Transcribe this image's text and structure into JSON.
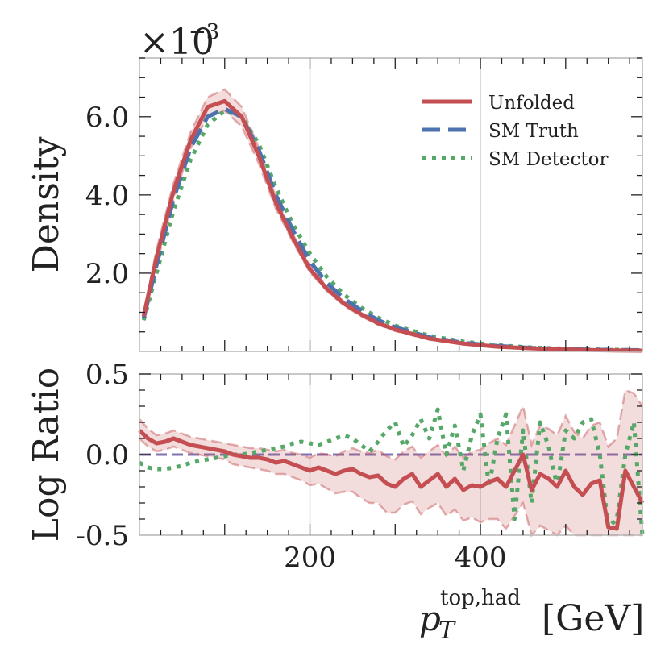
{
  "chart_data": [
    {
      "type": "line",
      "panel": "main",
      "ylabel": "Density",
      "y_scale_label": "×10⁻³",
      "y_scale_base": "×10",
      "y_scale_exp": "−3",
      "ylim": [
        0,
        7.5
      ],
      "xlim": [
        0,
        590
      ],
      "yticks": [
        2.0,
        4.0,
        6.0
      ],
      "ytick_labels": [
        "2.0",
        "4.0",
        "6.0"
      ],
      "grid": "vertical at 200 and 400",
      "legend_position": "top-right",
      "series": [
        {
          "name": "Unfolded",
          "color": "#c44e52",
          "style": "solid",
          "x": [
            5,
            20,
            40,
            60,
            80,
            100,
            120,
            140,
            160,
            180,
            200,
            220,
            240,
            260,
            280,
            300,
            340,
            380,
            420,
            460,
            500,
            540,
            590
          ],
          "y": [
            0.9,
            2.4,
            4.1,
            5.4,
            6.25,
            6.4,
            6.0,
            5.0,
            3.8,
            2.9,
            2.1,
            1.6,
            1.22,
            0.95,
            0.72,
            0.56,
            0.33,
            0.2,
            0.12,
            0.08,
            0.05,
            0.03,
            0.02
          ],
          "band_lower": [
            0.8,
            2.2,
            3.9,
            5.2,
            6.0,
            6.15,
            5.75,
            4.8,
            3.65,
            2.8,
            2.02,
            1.54,
            1.17,
            0.9,
            0.68,
            0.52,
            0.3,
            0.18,
            0.1,
            0.06,
            0.04,
            0.02,
            0.01
          ],
          "band_upper": [
            1.0,
            2.6,
            4.3,
            5.6,
            6.5,
            6.7,
            6.25,
            5.2,
            3.95,
            3.0,
            2.18,
            1.66,
            1.27,
            1.0,
            0.76,
            0.6,
            0.36,
            0.22,
            0.14,
            0.1,
            0.07,
            0.04,
            0.03
          ]
        },
        {
          "name": "SM Truth",
          "color": "#4c72b0",
          "style": "dashed",
          "x": [
            5,
            20,
            40,
            60,
            80,
            100,
            120,
            140,
            160,
            180,
            200,
            220,
            240,
            260,
            280,
            300,
            340,
            380,
            420,
            460,
            500,
            540,
            590
          ],
          "y": [
            0.85,
            2.2,
            3.9,
            5.2,
            6.0,
            6.2,
            6.0,
            5.15,
            4.0,
            3.1,
            2.3,
            1.75,
            1.35,
            1.05,
            0.8,
            0.62,
            0.36,
            0.22,
            0.14,
            0.09,
            0.06,
            0.04,
            0.03
          ]
        },
        {
          "name": "SM Detector",
          "color": "#55a868",
          "style": "dotted",
          "x": [
            5,
            20,
            40,
            60,
            80,
            100,
            120,
            140,
            160,
            180,
            200,
            220,
            240,
            260,
            280,
            300,
            340,
            380,
            420,
            460,
            500,
            540,
            590
          ],
          "y": [
            0.8,
            2.0,
            3.6,
            4.9,
            5.8,
            6.15,
            6.0,
            5.3,
            4.2,
            3.25,
            2.5,
            1.9,
            1.45,
            1.12,
            0.86,
            0.66,
            0.4,
            0.25,
            0.16,
            0.1,
            0.07,
            0.05,
            0.03
          ]
        }
      ]
    },
    {
      "type": "line",
      "panel": "ratio",
      "ylabel": "Log Ratio",
      "xlabel_main": "p",
      "xlabel_sub": "T",
      "xlabel_sup": "top,had",
      "xlabel_unit": "[GeV]",
      "ylim": [
        -0.5,
        0.5
      ],
      "xlim": [
        0,
        590
      ],
      "yticks": [
        -0.5,
        0.0,
        0.5
      ],
      "ytick_labels": [
        "-0.5",
        "0.0",
        "0.5"
      ],
      "xticks": [
        200,
        400
      ],
      "xtick_labels": [
        "200",
        "400"
      ],
      "reference_line": {
        "y": 0.0,
        "color": "#8172b2",
        "style": "dashed"
      },
      "series": [
        {
          "name": "Unfolded",
          "color": "#c44e52",
          "style": "solid",
          "x": [
            0,
            10,
            20,
            30,
            40,
            50,
            60,
            70,
            80,
            90,
            100,
            110,
            120,
            130,
            140,
            150,
            160,
            170,
            180,
            190,
            200,
            210,
            220,
            230,
            240,
            250,
            260,
            270,
            280,
            290,
            300,
            310,
            320,
            330,
            340,
            350,
            360,
            370,
            380,
            390,
            400,
            410,
            420,
            430,
            440,
            450,
            460,
            470,
            480,
            490,
            500,
            510,
            520,
            530,
            540,
            550,
            560,
            570,
            580,
            590
          ],
          "y": [
            0.15,
            0.1,
            0.07,
            0.08,
            0.1,
            0.08,
            0.06,
            0.05,
            0.04,
            0.03,
            0.02,
            0.0,
            -0.01,
            -0.02,
            -0.02,
            -0.03,
            -0.05,
            -0.04,
            -0.06,
            -0.08,
            -0.1,
            -0.08,
            -0.1,
            -0.12,
            -0.1,
            -0.09,
            -0.12,
            -0.14,
            -0.13,
            -0.18,
            -0.2,
            -0.15,
            -0.12,
            -0.2,
            -0.16,
            -0.12,
            -0.2,
            -0.15,
            -0.22,
            -0.19,
            -0.2,
            -0.17,
            -0.15,
            -0.2,
            -0.1,
            0.0,
            -0.22,
            -0.12,
            -0.15,
            -0.2,
            -0.1,
            -0.2,
            -0.25,
            -0.18,
            -0.16,
            -0.45,
            -0.46,
            -0.1,
            -0.2,
            -0.3
          ],
          "band_lower": [
            0.1,
            0.05,
            0.02,
            0.03,
            0.05,
            0.03,
            0.01,
            0.0,
            -0.01,
            -0.02,
            -0.03,
            -0.06,
            -0.07,
            -0.08,
            -0.09,
            -0.1,
            -0.12,
            -0.12,
            -0.14,
            -0.16,
            -0.19,
            -0.18,
            -0.21,
            -0.24,
            -0.23,
            -0.23,
            -0.27,
            -0.3,
            -0.3,
            -0.36,
            -0.36,
            -0.31,
            -0.29,
            -0.37,
            -0.33,
            -0.3,
            -0.38,
            -0.34,
            -0.41,
            -0.39,
            -0.42,
            -0.4,
            -0.4,
            -0.46,
            -0.38,
            -0.3,
            -0.5,
            -0.44,
            -0.47,
            -0.5,
            -0.44,
            -0.5,
            -0.5,
            -0.5,
            -0.5,
            -0.5,
            -0.5,
            -0.5,
            -0.5,
            -0.5
          ],
          "band_upper": [
            0.22,
            0.16,
            0.12,
            0.13,
            0.15,
            0.13,
            0.11,
            0.1,
            0.09,
            0.08,
            0.07,
            0.06,
            0.05,
            0.04,
            0.04,
            0.03,
            0.02,
            0.03,
            0.01,
            0.0,
            -0.02,
            0.01,
            -0.0,
            -0.01,
            0.02,
            0.04,
            0.02,
            0.01,
            0.03,
            -0.01,
            -0.03,
            0.02,
            0.05,
            -0.02,
            0.02,
            0.06,
            -0.01,
            0.05,
            -0.02,
            0.02,
            0.03,
            0.07,
            0.1,
            0.06,
            0.18,
            0.3,
            0.06,
            0.18,
            0.16,
            0.12,
            0.24,
            0.14,
            0.1,
            0.18,
            0.2,
            0.05,
            0.1,
            0.4,
            0.38,
            0.3
          ]
        },
        {
          "name": "SM Detector",
          "color": "#55a868",
          "style": "dotted",
          "x": [
            0,
            10,
            20,
            30,
            40,
            50,
            60,
            70,
            80,
            90,
            100,
            110,
            120,
            130,
            140,
            150,
            160,
            170,
            180,
            190,
            200,
            210,
            220,
            230,
            240,
            250,
            260,
            270,
            280,
            290,
            300,
            310,
            320,
            330,
            340,
            350,
            360,
            370,
            380,
            390,
            400,
            410,
            420,
            430,
            440,
            450,
            460,
            470,
            480,
            490,
            500,
            510,
            520,
            530,
            540,
            550,
            560,
            570,
            580,
            590
          ],
          "y": [
            -0.05,
            -0.08,
            -0.09,
            -0.09,
            -0.08,
            -0.07,
            -0.05,
            -0.04,
            -0.03,
            -0.02,
            -0.01,
            0.0,
            0.0,
            0.01,
            0.02,
            0.03,
            0.04,
            0.05,
            0.07,
            0.08,
            0.07,
            0.06,
            0.08,
            0.1,
            0.12,
            0.1,
            0.06,
            0.02,
            0.08,
            0.15,
            0.2,
            0.05,
            0.12,
            0.22,
            0.1,
            0.28,
            0.0,
            0.18,
            -0.1,
            0.12,
            0.25,
            -0.2,
            0.1,
            0.25,
            -0.4,
            0.15,
            -0.3,
            0.2,
            0.05,
            -0.2,
            0.15,
            0.1,
            0.2,
            0.22,
            0.0,
            -0.45,
            -0.4,
            0.0,
            0.2,
            -0.5
          ]
        }
      ]
    }
  ]
}
